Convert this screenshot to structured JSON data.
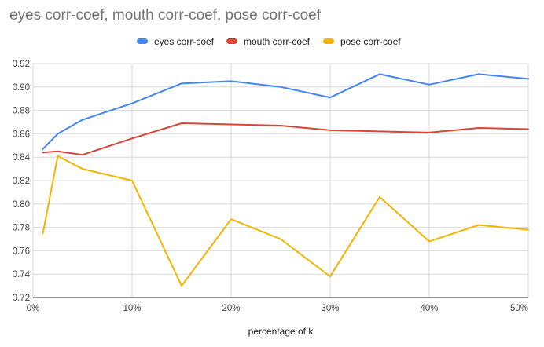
{
  "chart_data": {
    "type": "line",
    "title": "eyes corr-coef, mouth corr-coef, pose corr-coef",
    "xlabel": "percentage of k",
    "ylabel": "",
    "x": [
      1,
      2.5,
      5,
      10,
      15,
      20,
      25,
      30,
      35,
      40,
      45,
      50
    ],
    "x_ticks": [
      0,
      10,
      20,
      30,
      40,
      50
    ],
    "x_tick_labels": [
      "0%",
      "10%",
      "20%",
      "30%",
      "40%",
      "50%"
    ],
    "xlim": [
      0,
      50
    ],
    "ylim": [
      0.72,
      0.92
    ],
    "y_ticks": [
      0.72,
      0.74,
      0.76,
      0.78,
      0.8,
      0.82,
      0.84,
      0.86,
      0.88,
      0.9,
      0.92
    ],
    "y_tick_labels": [
      "0.72",
      "0.74",
      "0.76",
      "0.78",
      "0.80",
      "0.82",
      "0.84",
      "0.86",
      "0.88",
      "0.90",
      "0.92"
    ],
    "grid": true,
    "legend_position": "top",
    "series": [
      {
        "name": "eyes corr-coef",
        "color": "#4285f4",
        "values": [
          0.847,
          0.86,
          0.872,
          0.886,
          0.903,
          0.905,
          0.9,
          0.891,
          0.911,
          0.902,
          0.911,
          0.907
        ]
      },
      {
        "name": "mouth corr-coef",
        "color": "#db4437",
        "values": [
          0.844,
          0.845,
          0.842,
          0.856,
          0.869,
          0.868,
          0.867,
          0.863,
          0.862,
          0.861,
          0.865,
          0.864
        ]
      },
      {
        "name": "pose corr-coef",
        "color": "#f4b400",
        "values": [
          0.775,
          0.841,
          0.83,
          0.82,
          0.73,
          0.787,
          0.77,
          0.738,
          0.806,
          0.768,
          0.782,
          0.778
        ]
      }
    ]
  }
}
